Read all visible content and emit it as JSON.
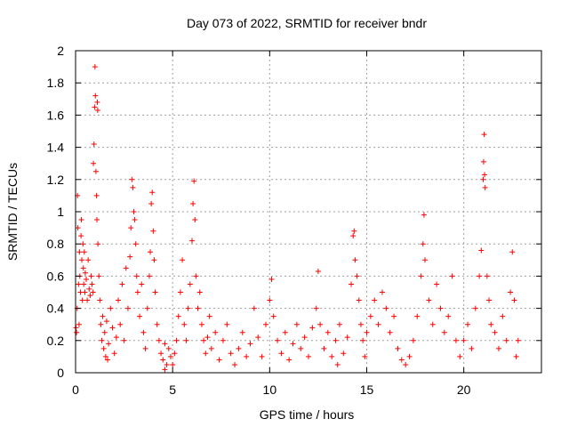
{
  "chart_data": {
    "type": "scatter",
    "title": "Day 073 of 2022, SRMTID for receiver bndr",
    "xlabel": "GPS time / hours",
    "ylabel": "SRMTID / TECUs",
    "xlim": [
      0,
      24
    ],
    "ylim": [
      0,
      2
    ],
    "xticks": [
      0,
      5,
      10,
      15,
      20
    ],
    "xtick_labels": [
      "0",
      "5",
      "10",
      "15",
      "20"
    ],
    "yticks": [
      0,
      0.2,
      0.4,
      0.6,
      0.8,
      1,
      1.2,
      1.4,
      1.6,
      1.8,
      2
    ],
    "ytick_labels": [
      "0",
      "0.2",
      "0.4",
      "0.6",
      "0.8",
      "1",
      "1.2",
      "1.4",
      "1.6",
      "1.8",
      "2"
    ],
    "grid": true,
    "marker": "+",
    "color": "#ff0000",
    "series": [
      {
        "name": "SRMTID",
        "points": [
          [
            0.05,
            0.25
          ],
          [
            0.08,
            0.4
          ],
          [
            0.1,
            1.1
          ],
          [
            0.12,
            0.9
          ],
          [
            0.15,
            0.55
          ],
          [
            0.18,
            0.3
          ],
          [
            0.2,
            0.75
          ],
          [
            0.22,
            0.6
          ],
          [
            0.25,
            0.5
          ],
          [
            0.28,
            0.85
          ],
          [
            0.3,
            0.95
          ],
          [
            0.32,
            0.7
          ],
          [
            0.35,
            0.45
          ],
          [
            0.38,
            0.8
          ],
          [
            0.4,
            0.65
          ],
          [
            0.42,
            0.55
          ],
          [
            0.45,
            0.75
          ],
          [
            0.48,
            0.5
          ],
          [
            0.5,
            0.62
          ],
          [
            0.55,
            0.58
          ],
          [
            0.6,
            0.45
          ],
          [
            0.65,
            0.7
          ],
          [
            0.7,
            0.52
          ],
          [
            0.75,
            0.48
          ],
          [
            0.8,
            0.6
          ],
          [
            0.85,
            0.55
          ],
          [
            0.9,
            0.5
          ],
          [
            0.92,
            1.3
          ],
          [
            0.95,
            1.42
          ],
          [
            0.98,
            1.65
          ],
          [
            1.0,
            1.9
          ],
          [
            1.02,
            1.72
          ],
          [
            1.05,
            1.25
          ],
          [
            1.08,
            1.1
          ],
          [
            1.1,
            0.95
          ],
          [
            1.15,
            0.8
          ],
          [
            1.2,
            0.6
          ],
          [
            1.25,
            0.45
          ],
          [
            1.3,
            0.3
          ],
          [
            1.35,
            0.2
          ],
          [
            1.4,
            0.35
          ],
          [
            1.45,
            0.15
          ],
          [
            1.5,
            0.25
          ],
          [
            1.55,
            0.1
          ],
          [
            1.6,
            0.32
          ],
          [
            1.65,
            0.08
          ],
          [
            1.7,
            0.18
          ],
          [
            1.8,
            0.4
          ],
          [
            1.9,
            0.28
          ],
          [
            2.0,
            0.12
          ],
          [
            2.1,
            0.22
          ],
          [
            2.2,
            0.45
          ],
          [
            2.3,
            0.3
          ],
          [
            2.4,
            0.55
          ],
          [
            2.5,
            0.2
          ],
          [
            2.6,
            0.65
          ],
          [
            2.7,
            0.4
          ],
          [
            2.8,
            0.72
          ],
          [
            2.85,
            0.9
          ],
          [
            2.9,
            1.2
          ],
          [
            2.95,
            1.15
          ],
          [
            3.0,
            1.0
          ],
          [
            3.05,
            0.95
          ],
          [
            3.1,
            0.8
          ],
          [
            3.15,
            0.6
          ],
          [
            3.2,
            0.5
          ],
          [
            3.3,
            0.35
          ],
          [
            3.4,
            0.55
          ],
          [
            3.5,
            0.25
          ],
          [
            3.6,
            0.15
          ],
          [
            3.7,
            0.4
          ],
          [
            3.8,
            0.6
          ],
          [
            3.85,
            0.75
          ],
          [
            3.9,
            1.05
          ],
          [
            3.95,
            1.12
          ],
          [
            4.0,
            0.88
          ],
          [
            4.05,
            0.7
          ],
          [
            4.1,
            0.5
          ],
          [
            4.2,
            0.3
          ],
          [
            4.3,
            0.2
          ],
          [
            4.4,
            0.12
          ],
          [
            4.5,
            0.08
          ],
          [
            4.6,
            0.18
          ],
          [
            4.7,
            0.05
          ],
          [
            4.8,
            0.15
          ],
          [
            4.9,
            0.1
          ],
          [
            5.0,
            0.05
          ],
          [
            5.1,
            0.12
          ],
          [
            5.2,
            0.2
          ],
          [
            5.3,
            0.35
          ],
          [
            5.4,
            0.5
          ],
          [
            5.5,
            0.7
          ],
          [
            5.6,
            0.3
          ],
          [
            5.7,
            0.2
          ],
          [
            5.8,
            0.4
          ],
          [
            5.9,
            0.55
          ],
          [
            6.0,
            0.82
          ],
          [
            6.05,
            1.05
          ],
          [
            6.1,
            1.19
          ],
          [
            6.15,
            0.95
          ],
          [
            6.2,
            0.6
          ],
          [
            6.3,
            0.4
          ],
          [
            6.4,
            0.5
          ],
          [
            6.5,
            0.3
          ],
          [
            6.6,
            0.2
          ],
          [
            6.7,
            0.12
          ],
          [
            6.8,
            0.22
          ],
          [
            6.9,
            0.35
          ],
          [
            7.0,
            0.15
          ],
          [
            7.2,
            0.25
          ],
          [
            7.4,
            0.08
          ],
          [
            7.6,
            0.2
          ],
          [
            7.8,
            0.3
          ],
          [
            8.0,
            0.12
          ],
          [
            8.2,
            0.05
          ],
          [
            8.4,
            0.15
          ],
          [
            8.6,
            0.25
          ],
          [
            8.8,
            0.1
          ],
          [
            9.0,
            0.18
          ],
          [
            9.2,
            0.4
          ],
          [
            9.4,
            0.22
          ],
          [
            9.6,
            0.1
          ],
          [
            9.8,
            0.3
          ],
          [
            10.0,
            0.45
          ],
          [
            10.1,
            0.58
          ],
          [
            10.2,
            0.35
          ],
          [
            10.4,
            0.2
          ],
          [
            10.6,
            0.12
          ],
          [
            10.8,
            0.25
          ],
          [
            11.0,
            0.08
          ],
          [
            11.2,
            0.18
          ],
          [
            11.4,
            0.3
          ],
          [
            11.6,
            0.15
          ],
          [
            11.8,
            0.22
          ],
          [
            12.0,
            0.1
          ],
          [
            12.2,
            0.28
          ],
          [
            12.4,
            0.4
          ],
          [
            12.5,
            0.63
          ],
          [
            12.6,
            0.3
          ],
          [
            12.8,
            0.15
          ],
          [
            13.0,
            0.25
          ],
          [
            13.2,
            0.1
          ],
          [
            13.4,
            0.2
          ],
          [
            13.6,
            0.3
          ],
          [
            13.8,
            0.12
          ],
          [
            14.0,
            0.22
          ],
          [
            14.2,
            0.55
          ],
          [
            14.3,
            0.85
          ],
          [
            14.35,
            0.88
          ],
          [
            14.4,
            0.7
          ],
          [
            14.5,
            0.6
          ],
          [
            14.6,
            0.45
          ],
          [
            14.7,
            0.3
          ],
          [
            14.8,
            0.2
          ],
          [
            14.9,
            0.1
          ],
          [
            15.0,
            0.25
          ],
          [
            15.2,
            0.35
          ],
          [
            15.4,
            0.45
          ],
          [
            15.6,
            0.3
          ],
          [
            15.8,
            0.5
          ],
          [
            16.0,
            0.4
          ],
          [
            16.2,
            0.25
          ],
          [
            16.4,
            0.35
          ],
          [
            16.6,
            0.15
          ],
          [
            16.8,
            0.08
          ],
          [
            17.0,
            0.05
          ],
          [
            17.2,
            0.1
          ],
          [
            17.4,
            0.2
          ],
          [
            17.6,
            0.35
          ],
          [
            17.8,
            0.6
          ],
          [
            17.9,
            0.8
          ],
          [
            17.95,
            0.98
          ],
          [
            18.0,
            0.7
          ],
          [
            18.2,
            0.45
          ],
          [
            18.4,
            0.3
          ],
          [
            18.6,
            0.55
          ],
          [
            18.8,
            0.4
          ],
          [
            19.0,
            0.25
          ],
          [
            19.2,
            0.35
          ],
          [
            19.4,
            0.6
          ],
          [
            19.6,
            0.2
          ],
          [
            19.8,
            0.1
          ],
          [
            20.0,
            0.2
          ],
          [
            20.2,
            0.3
          ],
          [
            20.4,
            0.15
          ],
          [
            20.6,
            0.4
          ],
          [
            20.8,
            0.6
          ],
          [
            20.9,
            0.76
          ],
          [
            21.0,
            1.2
          ],
          [
            21.02,
            1.31
          ],
          [
            21.05,
            1.48
          ],
          [
            21.1,
            1.15
          ],
          [
            21.2,
            0.6
          ],
          [
            21.3,
            0.45
          ],
          [
            21.4,
            0.3
          ],
          [
            21.6,
            0.25
          ],
          [
            21.8,
            0.15
          ],
          [
            22.0,
            0.35
          ],
          [
            22.2,
            0.2
          ],
          [
            22.4,
            0.5
          ],
          [
            22.5,
            0.75
          ],
          [
            22.6,
            0.45
          ],
          [
            22.7,
            0.1
          ],
          [
            22.8,
            0.2
          ],
          [
            1.12,
            1.68
          ],
          [
            1.14,
            1.63
          ],
          [
            21.07,
            1.23
          ],
          [
            0.02,
            0.28
          ],
          [
            4.6,
            0.02
          ],
          [
            13.5,
            0.05
          ]
        ]
      }
    ]
  }
}
